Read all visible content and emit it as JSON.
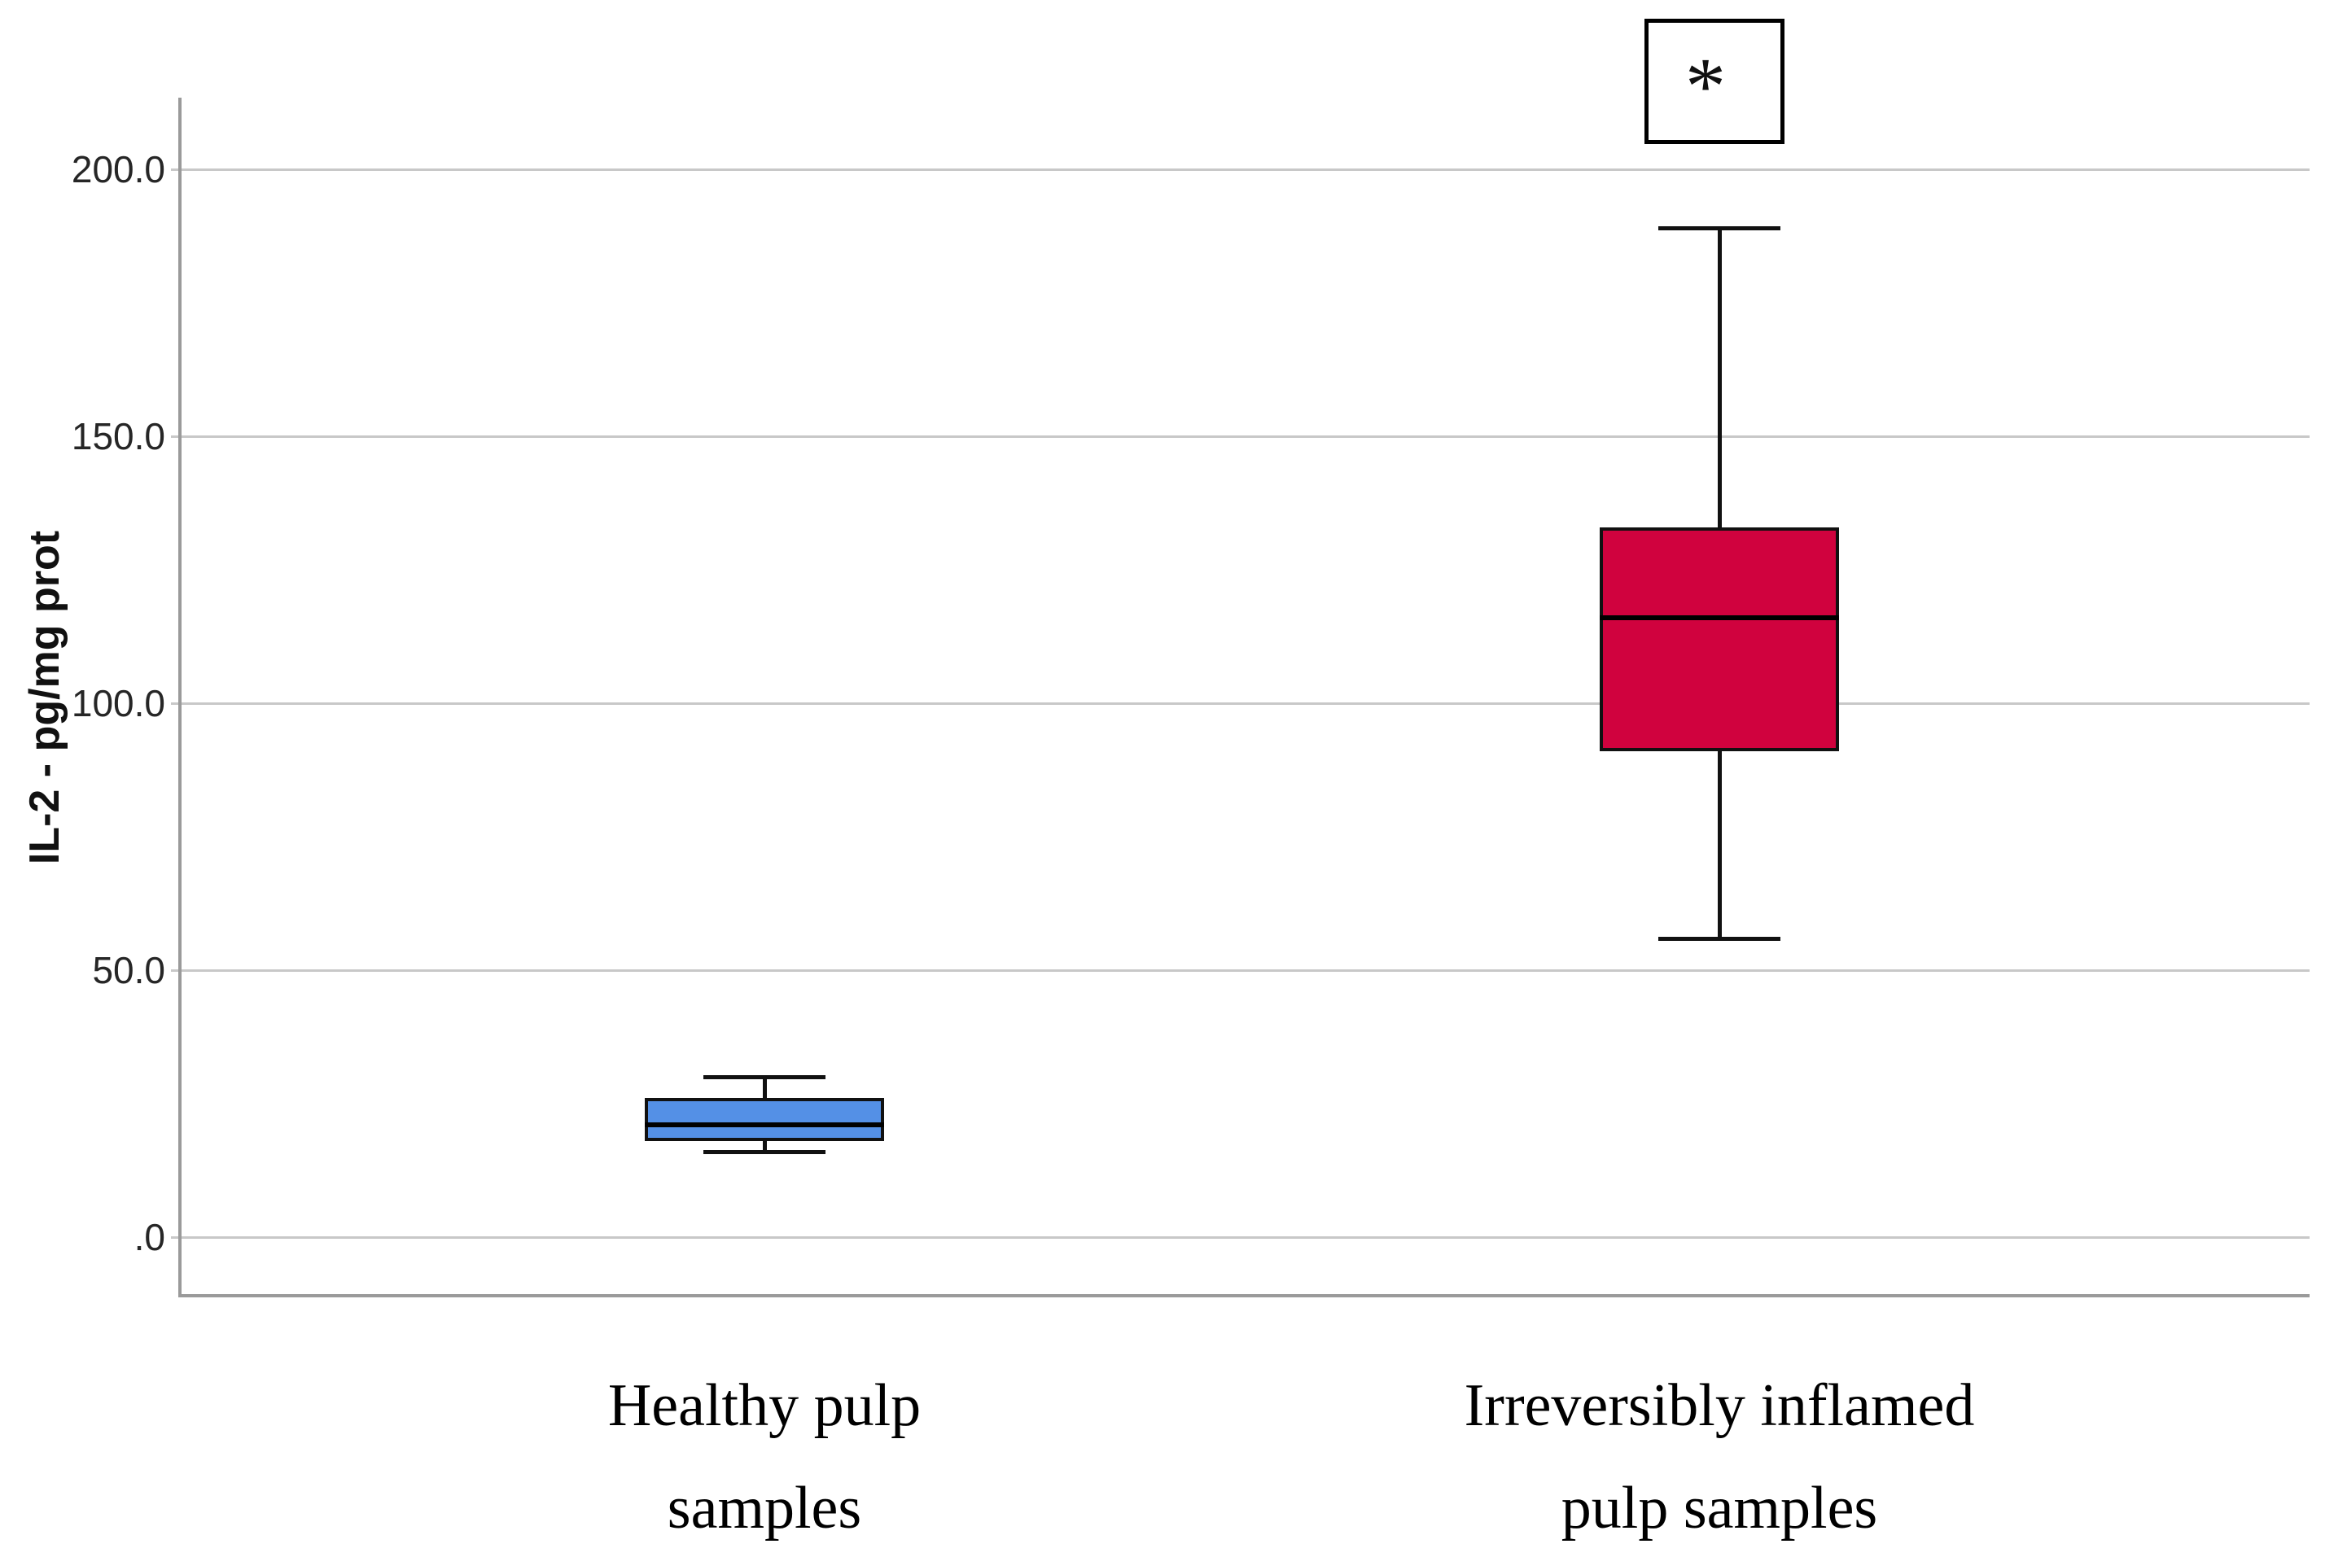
{
  "figure": {
    "significance_marker": "*"
  },
  "y_axis": {
    "title": "IL-2 - pg/mg prot"
  },
  "colors": {
    "healthy_box_fill": "#5490E6",
    "inflamed_box_fill": "#D0023E",
    "box_border": "#111111",
    "gridline": "#C8C8C8",
    "axis_line": "#9A9A9A",
    "tick_text": "#262626",
    "label_text": "#000000"
  },
  "chart_data": {
    "type": "boxplot",
    "title": "",
    "xlabel": "",
    "ylabel": "IL-2 - pg/mg prot",
    "ylim": [
      -11,
      213
    ],
    "yticks": [
      0,
      50,
      100,
      150,
      200
    ],
    "ytick_labels": [
      ".0",
      "50.0",
      "100.0",
      "150.0",
      "200.0"
    ],
    "grid": true,
    "categories": [
      "Healthy pulp samples",
      "Irreversibly inflamed pulp samples"
    ],
    "series": [
      {
        "name": "Healthy pulp samples",
        "label_lines": [
          "Healthy pulp",
          "samples"
        ],
        "color": "#5490E6",
        "whisker_low": 16,
        "q1": 18,
        "median": 21,
        "q3": 26,
        "whisker_high": 30,
        "annotation": ""
      },
      {
        "name": "Irreversibly inflamed pulp samples",
        "label_lines": [
          "Irreversibly inflamed",
          "pulp samples"
        ],
        "color": "#D0023E",
        "whisker_low": 56,
        "q1": 91,
        "median": 116,
        "q3": 133,
        "whisker_high": 189,
        "annotation": "*"
      }
    ]
  }
}
